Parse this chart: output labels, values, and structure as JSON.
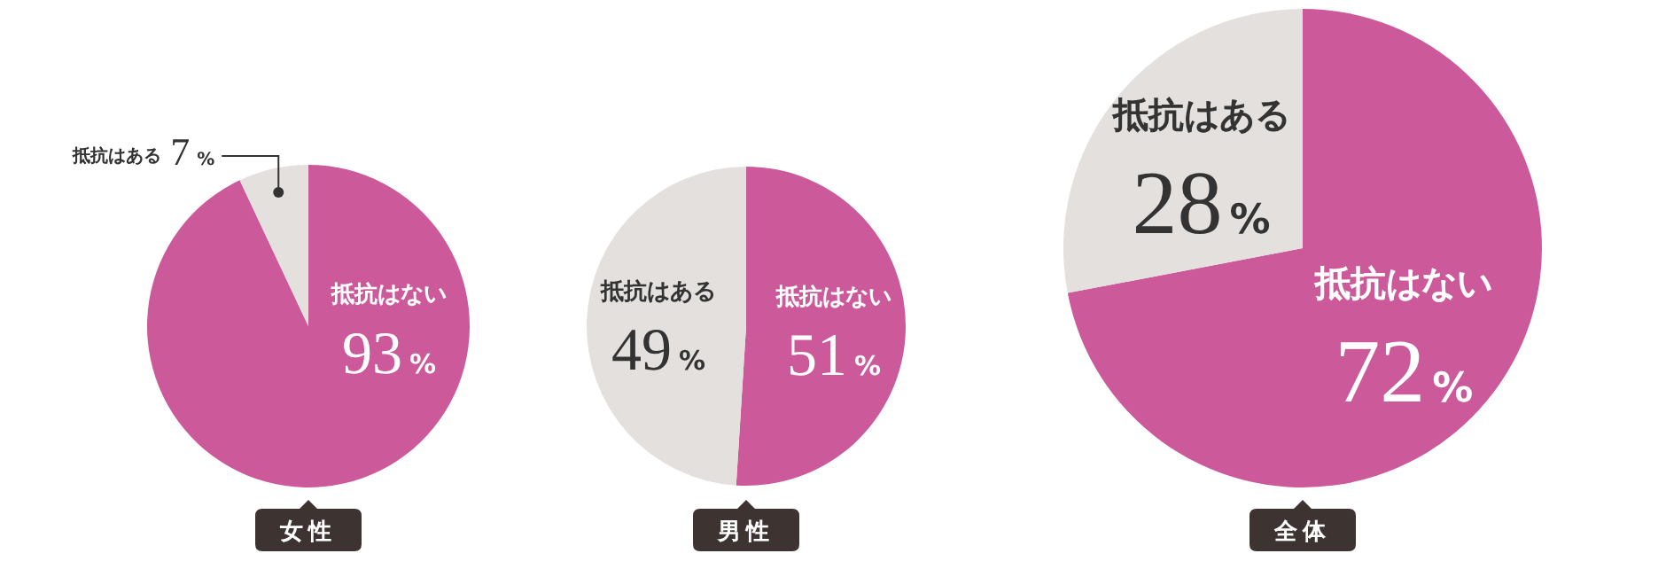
{
  "chart_data": [
    {
      "type": "pie",
      "title": "女性",
      "categories": [
        "抵抗はない",
        "抵抗はある"
      ],
      "values": [
        93,
        7
      ],
      "colors": [
        "#cc5a9b",
        "#e4e0dd"
      ],
      "value_labels": [
        "93%",
        "7%"
      ]
    },
    {
      "type": "pie",
      "title": "男性",
      "categories": [
        "抵抗はない",
        "抵抗はある"
      ],
      "values": [
        51,
        49
      ],
      "colors": [
        "#cc5a9b",
        "#e4e0dd"
      ],
      "value_labels": [
        "51%",
        "49%"
      ]
    },
    {
      "type": "pie",
      "title": "全体",
      "categories": [
        "抵抗はない",
        "抵抗はある"
      ],
      "values": [
        72,
        28
      ],
      "colors": [
        "#cc5a9b",
        "#e4e0dd"
      ],
      "value_labels": [
        "72%",
        "28%"
      ]
    }
  ]
}
